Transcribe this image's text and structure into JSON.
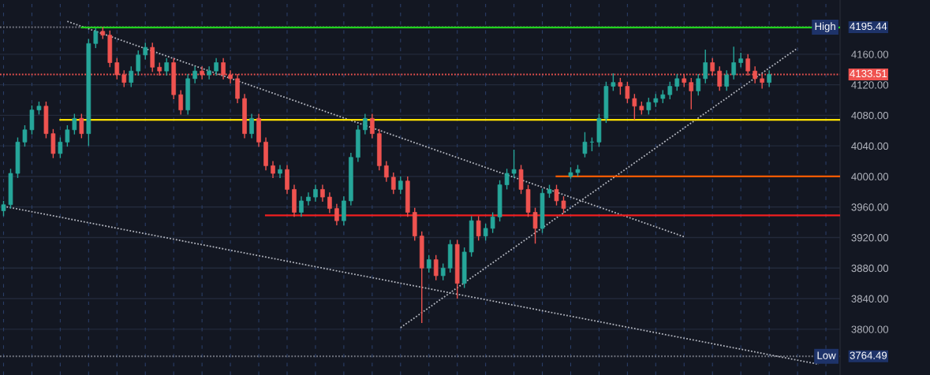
{
  "chart_data": {
    "type": "candlestick",
    "categories": [
      null,
      null,
      null,
      null,
      null,
      null,
      null,
      null,
      null,
      null,
      null,
      null,
      null,
      null,
      null,
      null,
      null,
      null,
      null,
      null,
      null,
      null,
      null,
      null,
      null,
      null,
      null,
      null,
      null,
      null,
      null,
      null,
      null,
      null,
      null,
      null,
      null,
      null,
      null,
      null,
      null,
      null,
      null,
      null,
      null,
      null,
      null,
      null,
      null,
      null,
      null,
      null,
      null,
      null,
      null,
      null,
      null,
      null,
      null,
      null,
      null,
      null,
      null,
      null,
      null,
      null,
      null,
      null,
      null,
      null,
      null,
      null,
      null,
      null,
      null,
      null,
      null,
      null,
      null,
      null,
      null,
      null,
      null,
      null,
      null,
      null,
      null,
      null,
      null,
      null,
      null,
      null,
      null,
      null,
      null,
      null,
      null,
      null,
      null,
      null,
      null,
      null,
      null,
      null,
      null,
      null,
      null,
      null,
      null,
      null,
      null,
      null,
      null,
      null,
      null,
      null,
      null,
      null,
      null
    ],
    "ohlc": [
      [
        3955,
        3968,
        3948,
        3963
      ],
      [
        3963,
        4010,
        3958,
        4004
      ],
      [
        4004,
        4051,
        3998,
        4045
      ],
      [
        4045,
        4067,
        4039,
        4061
      ],
      [
        4061,
        4093,
        4055,
        4087
      ],
      [
        4087,
        4098,
        4081,
        4092
      ],
      [
        4092,
        4098,
        4050,
        4056
      ],
      [
        4056,
        4062,
        4024,
        4030
      ],
      [
        4030,
        4051,
        4024,
        4045
      ],
      [
        4045,
        4067,
        4039,
        4061
      ],
      [
        4061,
        4082,
        4055,
        4076
      ],
      [
        4076,
        4082,
        4050,
        4056
      ],
      [
        4056,
        4180,
        4040,
        4174
      ],
      [
        4174,
        4194,
        4168,
        4190
      ],
      [
        4190,
        4195.44,
        4180,
        4185
      ],
      [
        4185,
        4191,
        4143,
        4149
      ],
      [
        4149,
        4155,
        4127,
        4133
      ],
      [
        4133,
        4139,
        4117,
        4123
      ],
      [
        4123,
        4144,
        4117,
        4138
      ],
      [
        4138,
        4165,
        4132,
        4159
      ],
      [
        4159,
        4175,
        4153,
        4169
      ],
      [
        4169,
        4175,
        4137,
        4143
      ],
      [
        4143,
        4149,
        4132,
        4138
      ],
      [
        4138,
        4155,
        4132,
        4149
      ],
      [
        4149,
        4155,
        4101,
        4107
      ],
      [
        4107,
        4113,
        4081,
        4087
      ],
      [
        4087,
        4134,
        4081,
        4128
      ],
      [
        4128,
        4144,
        4122,
        4138
      ],
      [
        4138,
        4144,
        4127,
        4133
      ],
      [
        4133,
        4144,
        4127,
        4138
      ],
      [
        4138,
        4155,
        4132,
        4149
      ],
      [
        4149,
        4155,
        4127,
        4133
      ],
      [
        4133,
        4139,
        4122,
        4128
      ],
      [
        4128,
        4134,
        4096,
        4102
      ],
      [
        4102,
        4108,
        4050,
        4056
      ],
      [
        4056,
        4082,
        4050,
        4076
      ],
      [
        4076,
        4082,
        4039,
        4045
      ],
      [
        4045,
        4051,
        4008,
        4014
      ],
      [
        4014,
        4020,
        3998,
        4004
      ],
      [
        4004,
        4015,
        3998,
        4009
      ],
      [
        4009,
        4015,
        3977,
        3983
      ],
      [
        3983,
        3989,
        3947,
        3953
      ],
      [
        3953,
        3974,
        3947,
        3968
      ],
      [
        3968,
        3979,
        3962,
        3973
      ],
      [
        3973,
        3989,
        3967,
        3983
      ],
      [
        3983,
        3989,
        3967,
        3973
      ],
      [
        3973,
        3979,
        3952,
        3958
      ],
      [
        3958,
        3964,
        3936,
        3942
      ],
      [
        3942,
        3974,
        3936,
        3968
      ],
      [
        3968,
        4031,
        3962,
        4025
      ],
      [
        4025,
        4067,
        4019,
        4061
      ],
      [
        4061,
        4082,
        4055,
        4076
      ],
      [
        4076,
        4082,
        4050,
        4056
      ],
      [
        4056,
        4062,
        4008,
        4014
      ],
      [
        4014,
        4020,
        3993,
        3999
      ],
      [
        3999,
        4005,
        3977,
        3983
      ],
      [
        3983,
        4000,
        3977,
        3994
      ],
      [
        3994,
        4000,
        3947,
        3953
      ],
      [
        3953,
        3959,
        3916,
        3922
      ],
      [
        3922,
        3928,
        3808,
        3880
      ],
      [
        3880,
        3897,
        3874,
        3891
      ],
      [
        3891,
        3897,
        3864,
        3870
      ],
      [
        3870,
        3886,
        3864,
        3880
      ],
      [
        3880,
        3917,
        3874,
        3911
      ],
      [
        3911,
        3917,
        3840,
        3860
      ],
      [
        3860,
        3907,
        3854,
        3901
      ],
      [
        3901,
        3948,
        3895,
        3942
      ],
      [
        3942,
        3948,
        3916,
        3922
      ],
      [
        3922,
        3938,
        3916,
        3932
      ],
      [
        3932,
        3953,
        3926,
        3947
      ],
      [
        3947,
        3995,
        3941,
        3989
      ],
      [
        3989,
        4010,
        3983,
        4004
      ],
      [
        4004,
        4035,
        3998,
        4009
      ],
      [
        4009,
        4015,
        3977,
        3983
      ],
      [
        3983,
        3989,
        3947,
        3953
      ],
      [
        3953,
        3959,
        3912,
        3932
      ],
      [
        3932,
        3984,
        3926,
        3978
      ],
      [
        3978,
        3989,
        3972,
        3983
      ],
      [
        3983,
        3989,
        3962,
        3968
      ],
      [
        3968,
        3974,
        3952,
        3958
      ],
      [
        4000,
        4012,
        3997,
        4005
      ],
      [
        4005,
        4015,
        4000,
        4009
      ],
      [
        4030,
        4058,
        4025,
        4045
      ],
      [
        4045,
        4051,
        4033,
        4045
      ],
      [
        4045,
        4082,
        4039,
        4076
      ],
      [
        4076,
        4124,
        4070,
        4118
      ],
      [
        4118,
        4135,
        4112,
        4123
      ],
      [
        4123,
        4129,
        4107,
        4118
      ],
      [
        4118,
        4124,
        4096,
        4102
      ],
      [
        4102,
        4108,
        4074,
        4092
      ],
      [
        4092,
        4098,
        4081,
        4087
      ],
      [
        4087,
        4103,
        4081,
        4097
      ],
      [
        4097,
        4108,
        4091,
        4102
      ],
      [
        4102,
        4113,
        4096,
        4107
      ],
      [
        4107,
        4124,
        4101,
        4118
      ],
      [
        4118,
        4134,
        4112,
        4128
      ],
      [
        4128,
        4134,
        4117,
        4123
      ],
      [
        4123,
        4129,
        4088,
        4112
      ],
      [
        4112,
        4134,
        4106,
        4128
      ],
      [
        4128,
        4166,
        4122,
        4149
      ],
      [
        4149,
        4155,
        4132,
        4138
      ],
      [
        4138,
        4144,
        4112,
        4118
      ],
      [
        4118,
        4139,
        4112,
        4133
      ],
      [
        4133,
        4170,
        4127,
        4149
      ],
      [
        4149,
        4162,
        4143,
        4154
      ],
      [
        4154,
        4160,
        4132,
        4138
      ],
      [
        4138,
        4144,
        4122,
        4128
      ],
      [
        4128,
        4134,
        4115,
        4123
      ],
      [
        4123,
        4139,
        4117,
        4133.51
      ],
      null,
      null,
      null,
      null,
      null,
      null,
      null,
      null,
      null,
      null
    ],
    "series": [
      {
        "type": "line",
        "color": "#b2b5be",
        "line_style": "dotted",
        "values": [
          null,
          null,
          null,
          null,
          null,
          null,
          null,
          null,
          null,
          4203,
          null,
          null,
          null,
          null,
          null,
          null,
          null,
          null,
          null,
          null,
          null,
          null,
          null,
          null,
          null,
          null,
          null,
          null,
          null,
          null,
          null,
          null,
          null,
          null,
          null,
          null,
          null,
          null,
          null,
          null,
          null,
          null,
          null,
          null,
          null,
          null,
          null,
          null,
          null,
          null,
          null,
          null,
          null,
          null,
          null,
          null,
          null,
          null,
          null,
          null,
          null,
          null,
          null,
          null,
          null,
          null,
          null,
          null,
          null,
          null,
          null,
          null,
          null,
          null,
          null,
          null,
          null,
          null,
          null,
          null,
          null,
          null,
          null,
          null,
          null,
          null,
          null,
          null,
          null,
          null,
          null,
          null,
          null,
          null,
          null,
          null,
          3921,
          null,
          null,
          null,
          null,
          null,
          null,
          null,
          null,
          null,
          null,
          null,
          null,
          null,
          null,
          null,
          null,
          null,
          null,
          null,
          null,
          null,
          null
        ]
      },
      {
        "type": "line",
        "color": "#b2b5be",
        "line_style": "dotted",
        "values": [
          3961,
          null,
          null,
          null,
          null,
          null,
          null,
          null,
          null,
          null,
          null,
          null,
          null,
          null,
          null,
          null,
          null,
          null,
          null,
          null,
          null,
          null,
          null,
          null,
          null,
          null,
          null,
          null,
          null,
          null,
          null,
          null,
          null,
          null,
          null,
          null,
          null,
          null,
          null,
          null,
          null,
          null,
          null,
          null,
          null,
          null,
          null,
          null,
          null,
          null,
          null,
          null,
          null,
          null,
          null,
          null,
          null,
          null,
          null,
          null,
          null,
          null,
          null,
          null,
          null,
          null,
          null,
          null,
          null,
          null,
          null,
          null,
          null,
          null,
          null,
          null,
          null,
          null,
          null,
          null,
          null,
          null,
          null,
          null,
          null,
          null,
          null,
          null,
          null,
          null,
          null,
          null,
          null,
          null,
          null,
          null,
          null,
          null,
          null,
          null,
          null,
          null,
          null,
          null,
          null,
          null,
          null,
          null,
          null,
          null,
          null,
          null,
          null,
          null,
          null,
          3754,
          null,
          null,
          null
        ]
      },
      {
        "type": "line",
        "color": "#b2b5be",
        "line_style": "dotted",
        "values": [
          null,
          null,
          null,
          null,
          null,
          null,
          null,
          null,
          null,
          null,
          null,
          null,
          null,
          null,
          null,
          null,
          null,
          null,
          null,
          null,
          null,
          null,
          null,
          null,
          null,
          null,
          null,
          null,
          null,
          null,
          null,
          null,
          null,
          null,
          null,
          null,
          null,
          null,
          null,
          null,
          null,
          null,
          null,
          null,
          null,
          null,
          null,
          null,
          null,
          null,
          null,
          null,
          null,
          null,
          null,
          null,
          3802,
          null,
          null,
          null,
          null,
          null,
          null,
          null,
          null,
          null,
          null,
          null,
          null,
          null,
          null,
          null,
          null,
          null,
          null,
          null,
          null,
          null,
          null,
          null,
          null,
          null,
          null,
          null,
          null,
          null,
          null,
          null,
          null,
          null,
          null,
          null,
          null,
          null,
          null,
          null,
          null,
          null,
          null,
          null,
          null,
          null,
          null,
          null,
          null,
          null,
          null,
          null,
          null,
          null,
          null,
          null,
          4168,
          null,
          null,
          null,
          null,
          null,
          null
        ]
      },
      {
        "type": "line",
        "color": "#22d11f",
        "line_style": "solid",
        "values": [
          null,
          null,
          null,
          null,
          null,
          null,
          null,
          null,
          null,
          null,
          null,
          4195,
          null,
          null,
          null,
          null,
          null,
          null,
          null,
          null,
          null,
          null,
          null,
          null,
          null,
          null,
          null,
          null,
          null,
          null,
          null,
          null,
          null,
          null,
          null,
          null,
          null,
          null,
          null,
          null,
          null,
          null,
          null,
          null,
          null,
          null,
          null,
          null,
          null,
          null,
          null,
          null,
          null,
          null,
          null,
          null,
          null,
          null,
          null,
          null,
          null,
          null,
          null,
          null,
          null,
          null,
          null,
          null,
          null,
          null,
          null,
          null,
          null,
          null,
          null,
          null,
          null,
          null,
          null,
          null,
          null,
          null,
          null,
          null,
          null,
          null,
          null,
          null,
          null,
          null,
          null,
          null,
          null,
          null,
          null,
          null,
          null,
          null,
          null,
          null,
          null,
          null,
          null,
          null,
          null,
          null,
          null,
          null,
          null,
          null,
          null,
          null,
          null,
          null,
          null,
          null,
          null,
          null,
          4195
        ]
      },
      {
        "type": "line",
        "color": "#ffe100",
        "line_style": "solid",
        "values": [
          null,
          null,
          null,
          null,
          null,
          null,
          null,
          null,
          4074,
          null,
          null,
          null,
          null,
          null,
          null,
          null,
          null,
          null,
          null,
          null,
          null,
          null,
          null,
          null,
          null,
          null,
          null,
          null,
          null,
          null,
          null,
          null,
          null,
          null,
          null,
          null,
          null,
          null,
          null,
          null,
          null,
          null,
          null,
          null,
          null,
          null,
          null,
          null,
          null,
          null,
          null,
          null,
          null,
          null,
          null,
          null,
          null,
          null,
          null,
          null,
          null,
          null,
          null,
          null,
          null,
          null,
          null,
          null,
          null,
          null,
          null,
          null,
          null,
          null,
          null,
          null,
          null,
          null,
          null,
          null,
          null,
          null,
          null,
          null,
          null,
          null,
          null,
          null,
          null,
          null,
          null,
          null,
          null,
          null,
          null,
          null,
          null,
          null,
          null,
          null,
          null,
          null,
          null,
          null,
          null,
          null,
          null,
          null,
          null,
          null,
          null,
          null,
          null,
          null,
          null,
          null,
          null,
          null,
          4074
        ]
      },
      {
        "type": "line",
        "color": "#ff5a00",
        "line_style": "solid",
        "values": [
          null,
          null,
          null,
          null,
          null,
          null,
          null,
          null,
          null,
          null,
          null,
          null,
          null,
          null,
          null,
          null,
          null,
          null,
          null,
          null,
          null,
          null,
          null,
          null,
          null,
          null,
          null,
          null,
          null,
          null,
          null,
          null,
          null,
          null,
          null,
          null,
          null,
          null,
          null,
          null,
          null,
          null,
          null,
          null,
          null,
          null,
          null,
          null,
          null,
          null,
          null,
          null,
          null,
          null,
          null,
          null,
          null,
          null,
          null,
          null,
          null,
          null,
          null,
          null,
          null,
          null,
          null,
          null,
          null,
          null,
          null,
          null,
          null,
          null,
          null,
          null,
          null,
          null,
          4000,
          null,
          null,
          null,
          null,
          null,
          null,
          null,
          null,
          null,
          null,
          null,
          null,
          null,
          null,
          null,
          null,
          null,
          null,
          null,
          null,
          null,
          null,
          null,
          null,
          null,
          null,
          null,
          null,
          null,
          null,
          null,
          null,
          null,
          null,
          null,
          null,
          null,
          null,
          null,
          4000
        ]
      },
      {
        "type": "line",
        "color": "#f21f1f",
        "line_style": "solid",
        "values": [
          null,
          null,
          null,
          null,
          null,
          null,
          null,
          null,
          null,
          null,
          null,
          null,
          null,
          null,
          null,
          null,
          null,
          null,
          null,
          null,
          null,
          null,
          null,
          null,
          null,
          null,
          null,
          null,
          null,
          null,
          null,
          null,
          null,
          null,
          null,
          null,
          null,
          3949,
          null,
          null,
          null,
          null,
          null,
          null,
          null,
          null,
          null,
          null,
          null,
          null,
          null,
          null,
          null,
          null,
          null,
          null,
          null,
          null,
          null,
          null,
          null,
          null,
          null,
          null,
          null,
          null,
          null,
          null,
          null,
          null,
          null,
          null,
          null,
          null,
          null,
          null,
          null,
          null,
          null,
          null,
          null,
          null,
          null,
          null,
          null,
          null,
          null,
          null,
          null,
          null,
          null,
          null,
          null,
          null,
          null,
          null,
          null,
          null,
          null,
          null,
          null,
          null,
          null,
          null,
          null,
          null,
          null,
          null,
          null,
          null,
          null,
          null,
          null,
          null,
          null,
          null,
          null,
          null,
          3949
        ]
      }
    ],
    "ref_lines": [
      {
        "axis": "y",
        "value": 4195.44,
        "label": "High",
        "color": "#787b86",
        "line_style": "dotted"
      },
      {
        "axis": "y",
        "value": 4133.51,
        "label": null,
        "color": "#ef5350",
        "line_style": "dotted"
      },
      {
        "axis": "y",
        "value": 3764.49,
        "label": "Low",
        "color": "#787b86",
        "line_style": "dotted"
      }
    ],
    "annotations": [
      "4195.44",
      "4133.51",
      "3764.49"
    ],
    "ylim": [
      3740,
      4231
    ],
    "yticks": [
      {
        "value": 3800,
        "label": "3800.00"
      },
      {
        "value": 3840,
        "label": "3840.00"
      },
      {
        "value": 3880,
        "label": "3880.00"
      },
      {
        "value": 3920,
        "label": "3920.00"
      },
      {
        "value": 3960,
        "label": "3960.00"
      },
      {
        "value": 4000,
        "label": "4000.00"
      },
      {
        "value": 4040,
        "label": "4040.00"
      },
      {
        "value": 4080,
        "label": "4080.00"
      },
      {
        "value": 4120,
        "label": "4120.00"
      },
      {
        "value": 4160,
        "label": "4160.00"
      }
    ],
    "tick_labels": "y",
    "grid": true
  }
}
